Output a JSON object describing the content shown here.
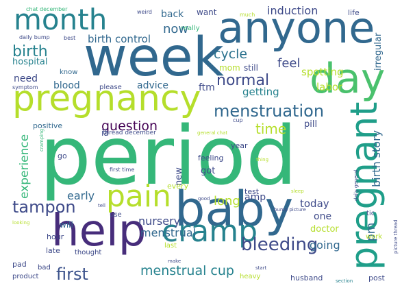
{
  "title": "Pregnancy forum word cloud",
  "palette": {
    "background": "#ffffff",
    "dark_purple": "#440154",
    "indigo": "#482878",
    "blue": "#3e4a89",
    "steel_blue": "#31688e",
    "teal_blue": "#26828e",
    "teal": "#1f9e89",
    "green": "#35b779",
    "light_green": "#6ece58",
    "lime": "#b5de2b",
    "yellow": "#fde725"
  },
  "words": [
    {
      "text": "period",
      "weight": 100,
      "color": "#35b779",
      "vertical": false
    },
    {
      "text": "week",
      "weight": 78,
      "color": "#31688e",
      "vertical": false
    },
    {
      "text": "anyone",
      "weight": 68,
      "color": "#31688e",
      "vertical": false
    },
    {
      "text": "baby",
      "weight": 70,
      "color": "#31688e",
      "vertical": false
    },
    {
      "text": "help",
      "weight": 65,
      "color": "#472d7b",
      "vertical": false
    },
    {
      "text": "pregnancy",
      "weight": 62,
      "color": "#b5de2b",
      "vertical": false
    },
    {
      "text": "day",
      "weight": 60,
      "color": "#4ac16d",
      "vertical": false
    },
    {
      "text": "pregnant",
      "weight": 58,
      "color": "#1f9e89",
      "vertical": true
    },
    {
      "text": "month",
      "weight": 45,
      "color": "#26828e",
      "vertical": false
    },
    {
      "text": "cramp",
      "weight": 44,
      "color": "#26828e",
      "vertical": false
    },
    {
      "text": "pain",
      "weight": 42,
      "color": "#b5de2b",
      "vertical": false
    },
    {
      "text": "bleeding",
      "weight": 28,
      "color": "#3e4a89",
      "vertical": false
    },
    {
      "text": "menstruation",
      "weight": 24,
      "color": "#31688e",
      "vertical": false
    },
    {
      "text": "tampon",
      "weight": 24,
      "color": "#3e4a89",
      "vertical": false
    },
    {
      "text": "first",
      "weight": 24,
      "color": "#3b528b",
      "vertical": false
    },
    {
      "text": "birth",
      "weight": 22,
      "color": "#26828e",
      "vertical": false
    },
    {
      "text": "normal",
      "weight": 22,
      "color": "#3e4a89",
      "vertical": false
    },
    {
      "text": "menstrual cup",
      "weight": 19,
      "color": "#26828e",
      "vertical": false
    },
    {
      "text": "question",
      "weight": 19,
      "color": "#440154",
      "vertical": false
    },
    {
      "text": "time",
      "weight": 20,
      "color": "#b5de2b",
      "vertical": false
    },
    {
      "text": "long",
      "weight": 18,
      "color": "#b5de2b",
      "vertical": false
    },
    {
      "text": "cycle",
      "weight": 18,
      "color": "#2c728e",
      "vertical": false
    },
    {
      "text": "feel",
      "weight": 18,
      "color": "#3e4a89",
      "vertical": false
    },
    {
      "text": "now",
      "weight": 18,
      "color": "#31688e",
      "vertical": false
    },
    {
      "text": "experience",
      "weight": 17,
      "color": "#35b779",
      "vertical": true
    },
    {
      "text": "birth story",
      "weight": 16,
      "color": "#31688e",
      "vertical": true
    },
    {
      "text": "pm",
      "weight": 17,
      "color": "#31688e",
      "vertical": true
    },
    {
      "text": "going",
      "weight": 16,
      "color": "#31688e",
      "vertical": false
    },
    {
      "text": "early",
      "weight": 16,
      "color": "#31688e",
      "vertical": false
    },
    {
      "text": "nursery",
      "weight": 16,
      "color": "#3e4a89",
      "vertical": false
    },
    {
      "text": "menstrual",
      "weight": 16,
      "color": "#31688e",
      "vertical": false
    },
    {
      "text": "induction",
      "weight": 16,
      "color": "#3e4a89",
      "vertical": false
    },
    {
      "text": "birth control",
      "weight": 15,
      "color": "#31688e",
      "vertical": false
    },
    {
      "text": "getting",
      "weight": 15,
      "color": "#26828e",
      "vertical": false
    },
    {
      "text": "spotting",
      "weight": 15,
      "color": "#b5de2b",
      "vertical": false
    },
    {
      "text": "labor",
      "weight": 15,
      "color": "#b5de2b",
      "vertical": false
    },
    {
      "text": "today",
      "weight": 15,
      "color": "#3e4a89",
      "vertical": false
    },
    {
      "text": "advice",
      "weight": 14,
      "color": "#31688e",
      "vertical": false
    },
    {
      "text": "blood",
      "weight": 14,
      "color": "#31688e",
      "vertical": false
    },
    {
      "text": "need",
      "weight": 14,
      "color": "#3e4a89",
      "vertical": false
    },
    {
      "text": "ftm",
      "weight": 14,
      "color": "#3e4a89",
      "vertical": false
    },
    {
      "text": "one",
      "weight": 14,
      "color": "#3e4a89",
      "vertical": false
    },
    {
      "text": "back",
      "weight": 14,
      "color": "#31688e",
      "vertical": false
    },
    {
      "text": "amp",
      "weight": 14,
      "color": "#3e4a89",
      "vertical": false
    },
    {
      "text": "pill",
      "weight": 13,
      "color": "#3e4a89",
      "vertical": false
    },
    {
      "text": "new",
      "weight": 13,
      "color": "#3e4a89",
      "vertical": true
    },
    {
      "text": "got",
      "weight": 13,
      "color": "#3e4a89",
      "vertical": false
    },
    {
      "text": "doctor",
      "weight": 13,
      "color": "#b5de2b",
      "vertical": false
    },
    {
      "text": "hospital",
      "weight": 13,
      "color": "#26828e",
      "vertical": false
    },
    {
      "text": "irregular",
      "weight": 13,
      "color": "#31688e",
      "vertical": true
    },
    {
      "text": "mom",
      "weight": 12,
      "color": "#b5de2b",
      "vertical": false
    },
    {
      "text": "still",
      "weight": 12,
      "color": "#3e4a89",
      "vertical": false
    },
    {
      "text": "want",
      "weight": 12,
      "color": "#3e4a89",
      "vertical": false
    },
    {
      "text": "will",
      "weight": 12,
      "color": "#31688e",
      "vertical": false
    },
    {
      "text": "iâ",
      "weight": 12,
      "color": "#3e4a89",
      "vertical": false
    },
    {
      "text": "positive",
      "weight": 11,
      "color": "#31688e",
      "vertical": false
    },
    {
      "text": "feeling",
      "weight": 11,
      "color": "#3e4a89",
      "vertical": false
    },
    {
      "text": "every",
      "weight": 11,
      "color": "#b5de2b",
      "vertical": false
    },
    {
      "text": "test",
      "weight": 11,
      "color": "#3e4a89",
      "vertical": false
    },
    {
      "text": "pad",
      "weight": 11,
      "color": "#3e4a89",
      "vertical": false
    },
    {
      "text": "hour",
      "weight": 11,
      "color": "#3e4a89",
      "vertical": false
    },
    {
      "text": "late",
      "weight": 11,
      "color": "#3e4a89",
      "vertical": false
    },
    {
      "text": "husband",
      "weight": 11,
      "color": "#3e4a89",
      "vertical": false
    },
    {
      "text": "post",
      "weight": 11,
      "color": "#3e4a89",
      "vertical": false
    },
    {
      "text": "year",
      "weight": 11,
      "color": "#3e4a89",
      "vertical": false
    },
    {
      "text": "life",
      "weight": 11,
      "color": "#3e4a89",
      "vertical": false
    },
    {
      "text": "go",
      "weight": 11,
      "color": "#3e4a89",
      "vertical": false
    },
    {
      "text": "really",
      "weight": 10,
      "color": "#35b779",
      "vertical": false
    },
    {
      "text": "know",
      "weight": 10,
      "color": "#31688e",
      "vertical": false
    },
    {
      "text": "please",
      "weight": 10,
      "color": "#3e4a89",
      "vertical": false
    },
    {
      "text": "thought",
      "weight": 10,
      "color": "#3e4a89",
      "vertical": false
    },
    {
      "text": "use",
      "weight": 10,
      "color": "#3e4a89",
      "vertical": false
    },
    {
      "text": "bad",
      "weight": 10,
      "color": "#3e4a89",
      "vertical": false
    },
    {
      "text": "product",
      "weight": 10,
      "color": "#3e4a89",
      "vertical": false
    },
    {
      "text": "heavy",
      "weight": 10,
      "color": "#b5de2b",
      "vertical": false
    },
    {
      "text": "work",
      "weight": 10,
      "color": "#b5de2b",
      "vertical": false
    },
    {
      "text": "last",
      "weight": 10,
      "color": "#b5de2b",
      "vertical": false
    },
    {
      "text": "tic",
      "weight": 10,
      "color": "#3e4a89",
      "vertical": false
    },
    {
      "text": "thread december",
      "weight": 9,
      "color": "#3e4a89",
      "vertical": false
    },
    {
      "text": "first time",
      "weight": 8,
      "color": "#3e4a89",
      "vertical": false
    },
    {
      "text": "weird",
      "weight": 8,
      "color": "#3e4a89",
      "vertical": false
    },
    {
      "text": "much",
      "weight": 8,
      "color": "#b5de2b",
      "vertical": false
    },
    {
      "text": "best",
      "weight": 8,
      "color": "#3e4a89",
      "vertical": false
    },
    {
      "text": "daily bump",
      "weight": 8,
      "color": "#3e4a89",
      "vertical": false
    },
    {
      "text": "chat december",
      "weight": 8,
      "color": "#35b779",
      "vertical": false
    },
    {
      "text": "symptom",
      "weight": 8,
      "color": "#3e4a89",
      "vertical": false
    },
    {
      "text": "cup",
      "weight": 8,
      "color": "#3e4a89",
      "vertical": false
    },
    {
      "text": "general chat",
      "weight": 7,
      "color": "#b5de2b",
      "vertical": false
    },
    {
      "text": "thing",
      "weight": 7,
      "color": "#b5de2b",
      "vertical": false
    },
    {
      "text": "cramping",
      "weight": 7,
      "color": "#35b779",
      "vertical": true
    },
    {
      "text": "tell",
      "weight": 7,
      "color": "#3e4a89",
      "vertical": false
    },
    {
      "text": "looking",
      "weight": 7,
      "color": "#b5de2b",
      "vertical": false
    },
    {
      "text": "good",
      "weight": 7,
      "color": "#3e4a89",
      "vertical": false
    },
    {
      "text": "sleep",
      "weight": 7,
      "color": "#b5de2b",
      "vertical": false
    },
    {
      "text": "bump picture",
      "weight": 7,
      "color": "#3e4a89",
      "vertical": false
    },
    {
      "text": "daily general",
      "weight": 7,
      "color": "#3e4a89",
      "vertical": true
    },
    {
      "text": "picture thread",
      "weight": 7,
      "color": "#3e4a89",
      "vertical": true
    },
    {
      "text": "make",
      "weight": 7,
      "color": "#3e4a89",
      "vertical": false
    },
    {
      "text": "start",
      "weight": 7,
      "color": "#3e4a89",
      "vertical": false
    },
    {
      "text": "section",
      "weight": 7,
      "color": "#26828e",
      "vertical": false
    }
  ]
}
